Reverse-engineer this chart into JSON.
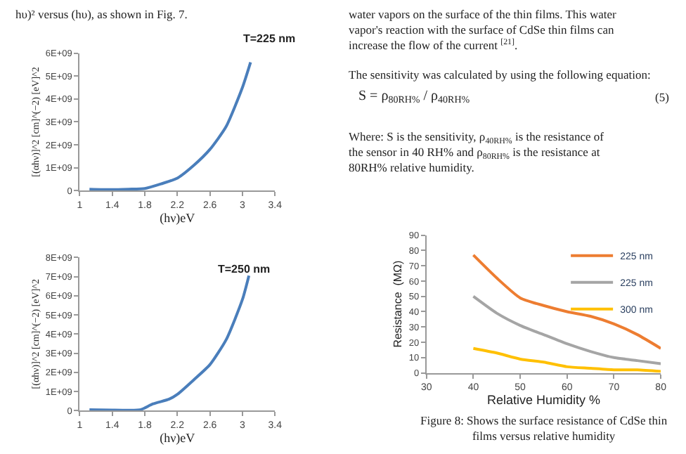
{
  "chart_data": [
    {
      "type": "line",
      "xlabel": "(hν)eV",
      "ylabel": "[(αhν)]^2 [cm]^(−2) [eV]^2",
      "annotations": [
        "hυ)² versus (hυ), as shown in Fig. 7.",
        "T=225 nm"
      ],
      "x": [
        1.12,
        1.4,
        1.6,
        1.8,
        2.0,
        2.2,
        2.4,
        2.6,
        2.8,
        3.0,
        3.1
      ],
      "series": [
        {
          "color": "#4a7ebb",
          "values": [
            70000000,
            50000000,
            70000000,
            100000000,
            300000000,
            550000000,
            1100000000,
            1800000000,
            2800000000,
            4500000000,
            5600000000
          ]
        }
      ],
      "xlim": [
        1,
        3.4
      ],
      "xticks": [
        1,
        1.4,
        1.8,
        2.2,
        2.6,
        3,
        3.4
      ],
      "ylim": [
        0,
        6000000000
      ],
      "yticks": [
        {
          "value": 0,
          "label": "0"
        },
        {
          "value": 1000000000,
          "label": "1E+09"
        },
        {
          "value": 2000000000,
          "label": "2E+09"
        },
        {
          "value": 3000000000,
          "label": "3E+09"
        },
        {
          "value": 4000000000,
          "label": "4E+09"
        },
        {
          "value": 5000000000,
          "label": "5E+09"
        },
        {
          "value": 6000000000,
          "label": "6E+09"
        }
      ],
      "grid": false,
      "legend": false,
      "marker": "none",
      "line_style": "solid"
    },
    {
      "type": "line",
      "xlabel": "(hν)eV",
      "ylabel": "[(αhν)]^2 [cm]^(−2) [eV]^2",
      "annotations": [
        "T=250 nm"
      ],
      "x": [
        1.12,
        1.4,
        1.6,
        1.75,
        1.9,
        2.1,
        2.2,
        2.4,
        2.6,
        2.8,
        3.0,
        3.08
      ],
      "series": [
        {
          "color": "#4a7ebb",
          "values": [
            50000000,
            30000000,
            20000000,
            50000000,
            350000000,
            600000000,
            850000000,
            1600000000,
            2400000000,
            3700000000,
            5800000000,
            7050000000
          ]
        }
      ],
      "xlim": [
        1,
        3.4
      ],
      "xticks": [
        1,
        1.4,
        1.8,
        2.2,
        2.6,
        3,
        3.4
      ],
      "ylim": [
        0,
        8000000000
      ],
      "yticks": [
        {
          "value": 0,
          "label": "0"
        },
        {
          "value": 1000000000,
          "label": "1E+09"
        },
        {
          "value": 2000000000,
          "label": "2E+09"
        },
        {
          "value": 3000000000,
          "label": "3E+09"
        },
        {
          "value": 4000000000,
          "label": "4E+09"
        },
        {
          "value": 5000000000,
          "label": "5E+09"
        },
        {
          "value": 6000000000,
          "label": "6E+09"
        },
        {
          "value": 7000000000,
          "label": "7E+09"
        },
        {
          "value": 8000000000,
          "label": "8E+09"
        }
      ],
      "grid": false,
      "legend": false,
      "marker": "none",
      "line_style": "solid"
    },
    {
      "type": "line",
      "xlabel": "Relative Humidity %",
      "ylabel": "Resistance  (MΩ)",
      "annotations": [
        "water vapors on the surface of the thin films. This water vapor's reaction with the surface of CdSe thin films can increase the flow of the current $^{[21]}$.",
        "The sensitivity was calculated by using the following equation:",
        "S = ρ$_{80RH%}$ / ρ$_{40RH%}$",
        "(5)",
        "Where: S is the sensitivity, ρ$_{40RH%}$ is the resistance of the sensor in 40 RH% and ρ$_{80RH%}$ is the resistance at 80RH% relative humidity.",
        "Figure 8: Shows the surface resistance of CdSe thin films versus relative humidity"
      ],
      "x": [
        40,
        45,
        50,
        55,
        60,
        65,
        70,
        75,
        80
      ],
      "series": [
        {
          "name": "225 nm",
          "color": "#ed7d31",
          "values": [
            77,
            62,
            49,
            44,
            40,
            37,
            32,
            25,
            16
          ]
        },
        {
          "name": "225 nm",
          "color": "#a5a5a5",
          "values": [
            50,
            39,
            31,
            25,
            19,
            14,
            10,
            8,
            6
          ]
        },
        {
          "name": "300 nm",
          "color": "#ffc000",
          "values": [
            16,
            13,
            9,
            7,
            4,
            3,
            2,
            2,
            1
          ]
        }
      ],
      "xlim": [
        30,
        80
      ],
      "xticks": [
        30,
        40,
        50,
        60,
        70,
        80
      ],
      "ylim": [
        0,
        90
      ],
      "yticks": [
        0,
        10,
        20,
        30,
        40,
        50,
        60,
        70,
        80,
        90
      ],
      "grid": false,
      "legend": "top right",
      "marker": "none",
      "line_style": "solid"
    }
  ]
}
